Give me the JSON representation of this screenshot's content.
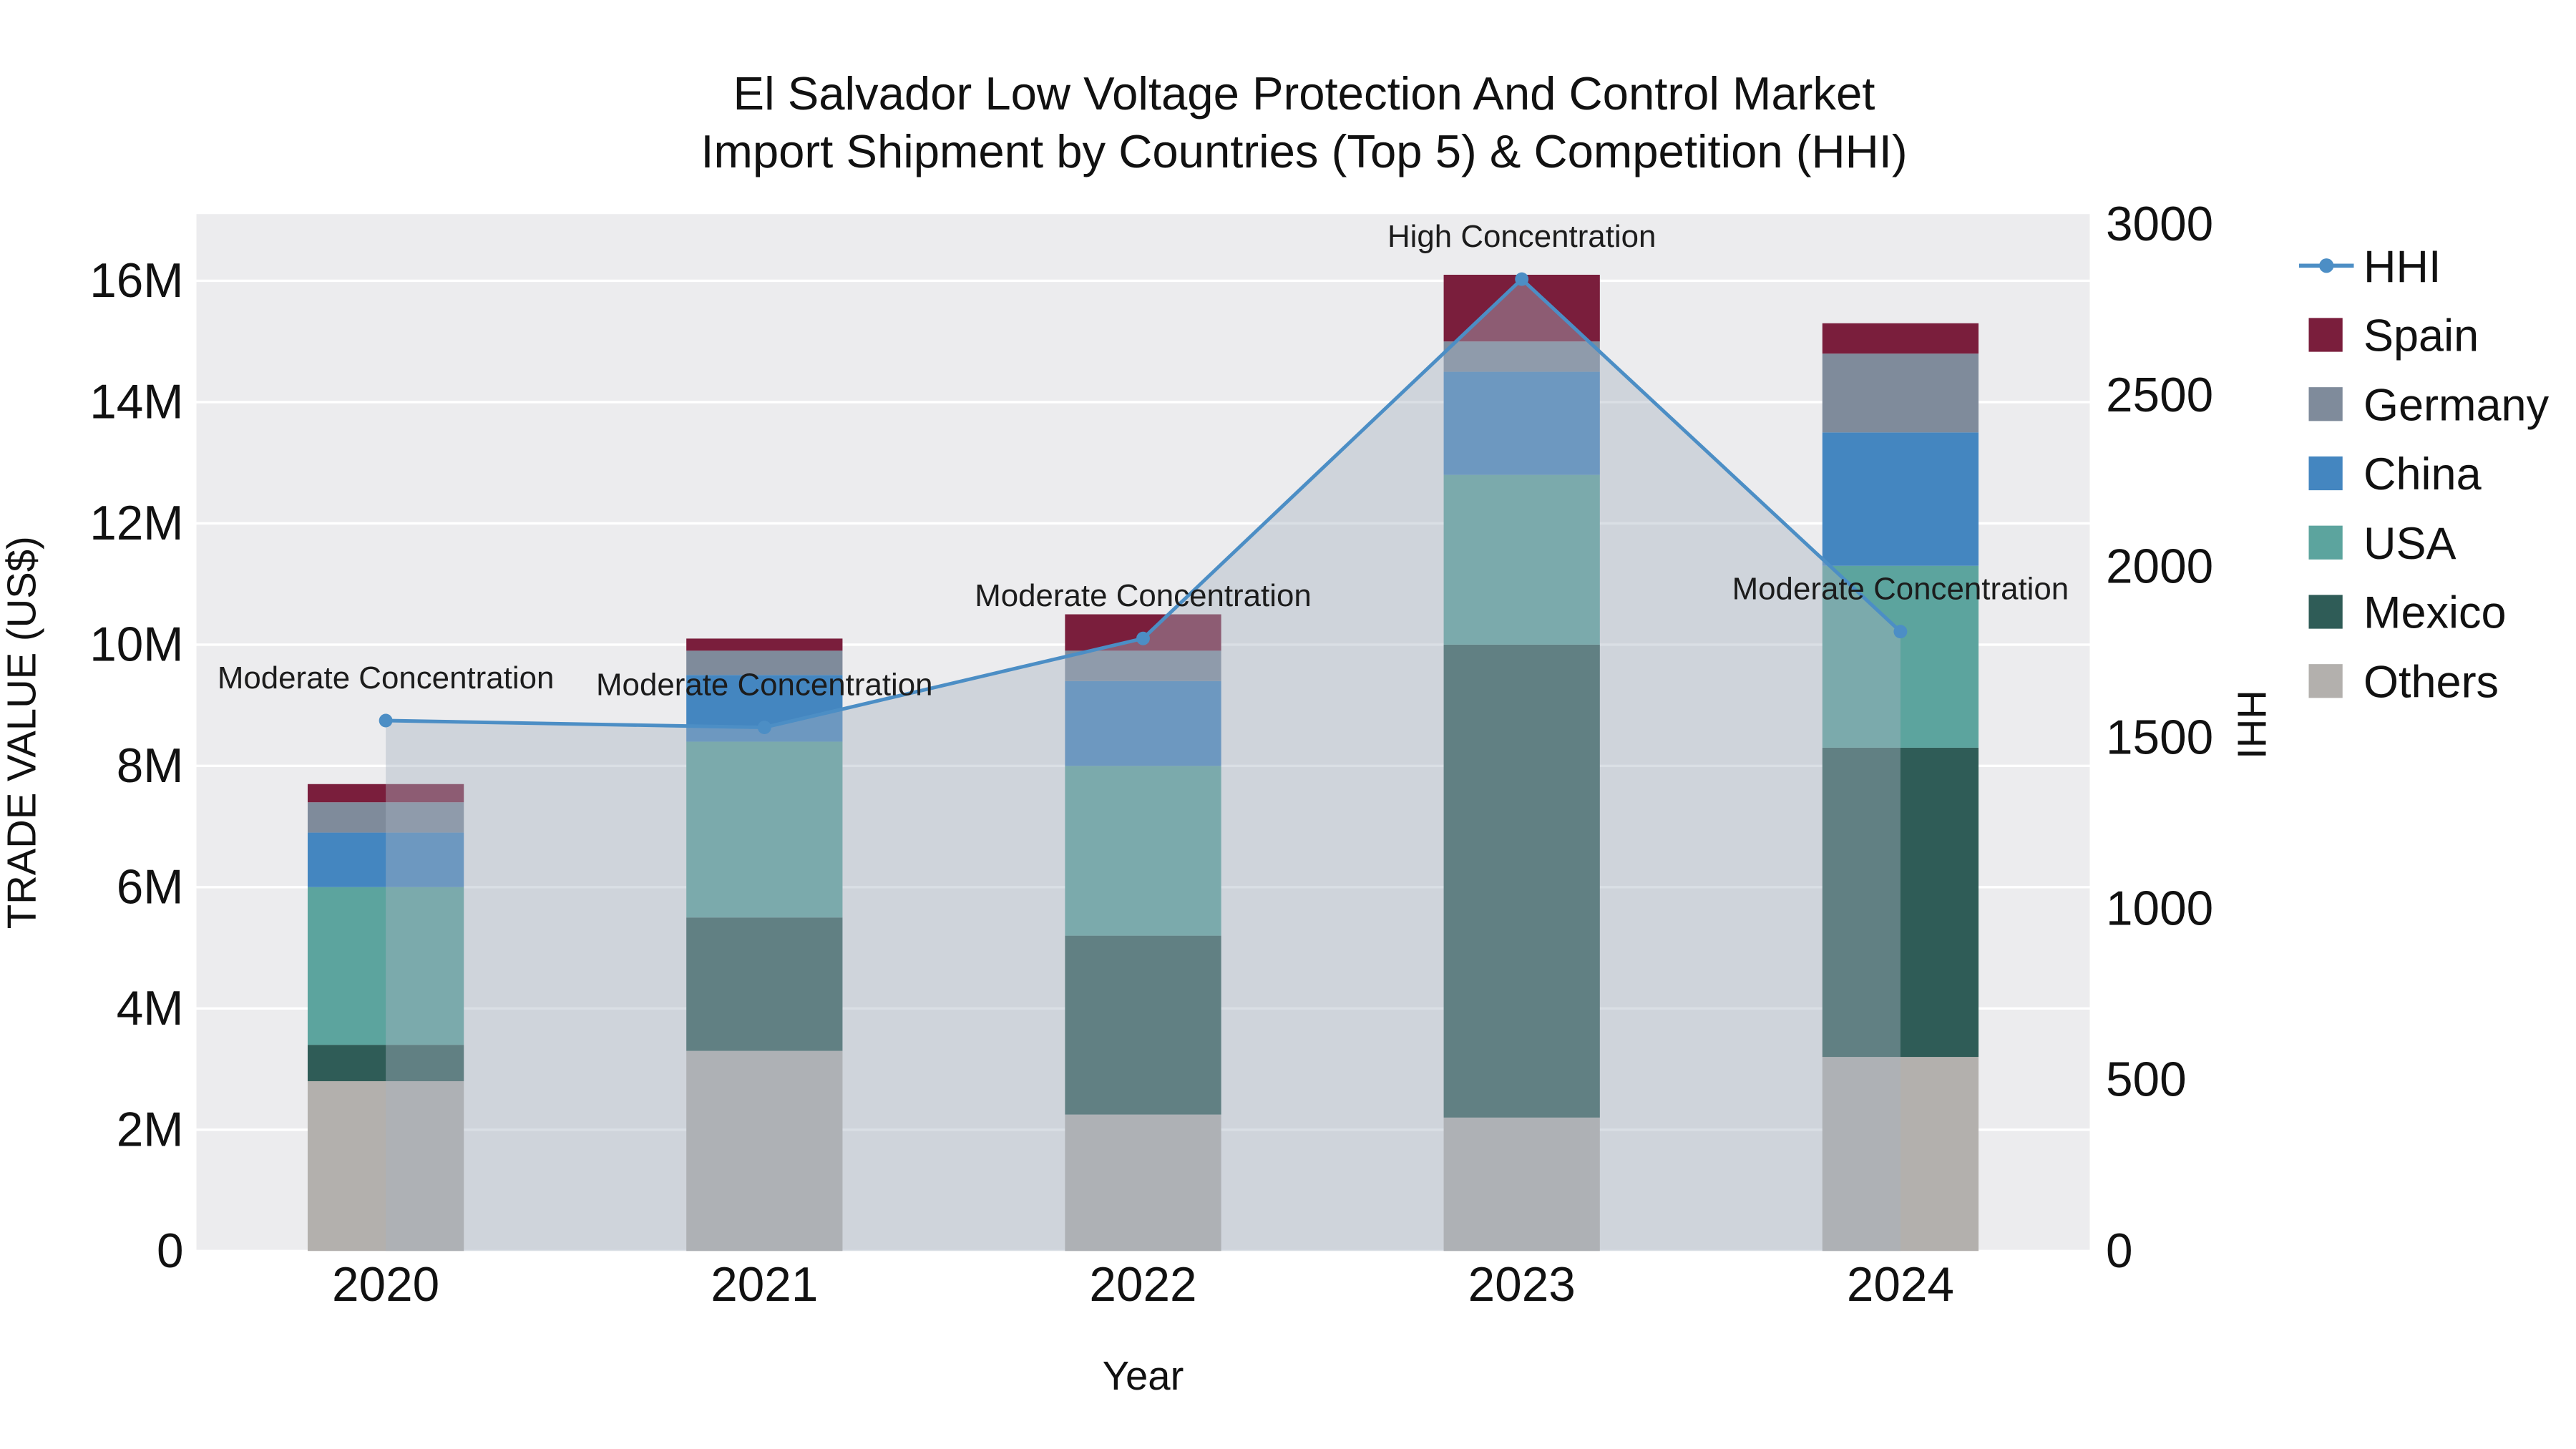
{
  "title": {
    "line1": "El Salvador Low Voltage Protection And Control Market",
    "line2": "Import Shipment by Countries (Top 5) & Competition (HHI)"
  },
  "axes": {
    "x_title": "Year",
    "y_left_title": "TRADE VALUE (US$)",
    "y_right_title": "HHI"
  },
  "colors": {
    "plot_background": "#ececee",
    "gridline": "#ffffff",
    "hhi_line": "#4c8ec5",
    "hhi_area_fill": "rgba(167,178,194,0.42)"
  },
  "chart_data": {
    "type": "bar",
    "stacked": true,
    "categories": [
      "2020",
      "2021",
      "2022",
      "2023",
      "2024"
    ],
    "value_unit": "M US$",
    "series": [
      {
        "name": "Others",
        "color": "#b3b0ad",
        "values": [
          2.8,
          3.3,
          2.25,
          2.2,
          3.2
        ]
      },
      {
        "name": "Mexico",
        "color": "#2f5c57",
        "values": [
          0.6,
          2.2,
          2.95,
          7.8,
          5.1
        ]
      },
      {
        "name": "USA",
        "color": "#5ca49e",
        "values": [
          2.6,
          2.9,
          2.8,
          2.8,
          3.0
        ]
      },
      {
        "name": "China",
        "color": "#4486c0",
        "values": [
          0.9,
          1.1,
          1.4,
          1.7,
          2.2
        ]
      },
      {
        "name": "Germany",
        "color": "#7f8b9b",
        "values": [
          0.5,
          0.4,
          0.5,
          0.5,
          1.3
        ]
      },
      {
        "name": "Spain",
        "color": "#7a1e3c",
        "values": [
          0.3,
          0.2,
          0.6,
          1.1,
          0.5
        ]
      }
    ],
    "line": {
      "name": "HHI",
      "color": "#4c8ec5",
      "axis": "right",
      "values": [
        1550,
        1530,
        1790,
        2840,
        1810
      ]
    },
    "annotations": [
      {
        "category": "2020",
        "text": "Moderate Concentration"
      },
      {
        "category": "2021",
        "text": "Moderate Concentration"
      },
      {
        "category": "2022",
        "text": "Moderate Concentration"
      },
      {
        "category": "2023",
        "text": "High Concentration"
      },
      {
        "category": "2024",
        "text": "Moderate Concentration"
      }
    ],
    "y_left": {
      "max": 17.1,
      "ticks": [
        {
          "v": 0,
          "label": "0"
        },
        {
          "v": 2,
          "label": "2M"
        },
        {
          "v": 4,
          "label": "4M"
        },
        {
          "v": 6,
          "label": "6M"
        },
        {
          "v": 8,
          "label": "8M"
        },
        {
          "v": 10,
          "label": "10M"
        },
        {
          "v": 12,
          "label": "12M"
        },
        {
          "v": 14,
          "label": "14M"
        },
        {
          "v": 16,
          "label": "16M"
        }
      ]
    },
    "y_right": {
      "max": 3030,
      "ticks": [
        {
          "v": 0,
          "label": "0"
        },
        {
          "v": 500,
          "label": "500"
        },
        {
          "v": 1000,
          "label": "1000"
        },
        {
          "v": 1500,
          "label": "1500"
        },
        {
          "v": 2000,
          "label": "2000"
        },
        {
          "v": 2500,
          "label": "2500"
        },
        {
          "v": 3000,
          "label": "3000"
        }
      ]
    },
    "legend_order": [
      "HHI",
      "Spain",
      "Germany",
      "China",
      "USA",
      "Mexico",
      "Others"
    ]
  }
}
